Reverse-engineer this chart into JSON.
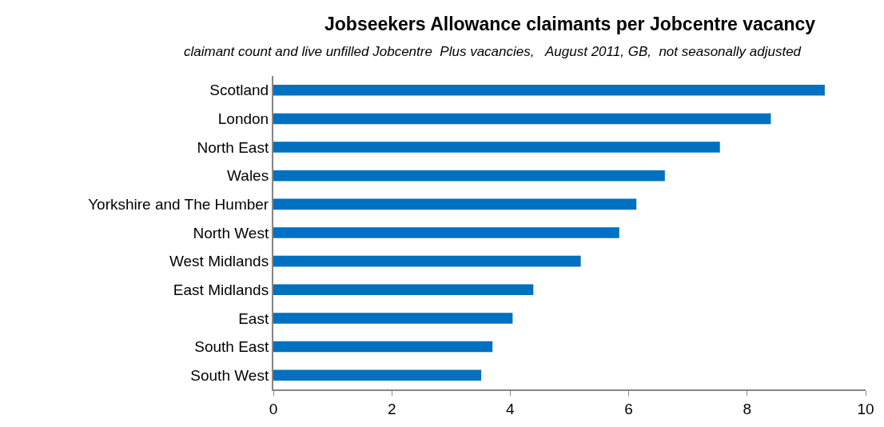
{
  "chart_data": {
    "type": "bar",
    "orientation": "horizontal",
    "title": "Jobseekers Allowance claimants per Jobcentre vacancy",
    "subtitle": "claimant count and live unfilled Jobcentre  Plus vacancies,   August 2011, GB,  not seasonally adjusted",
    "categories": [
      "Scotland",
      "London",
      "North East",
      "Wales",
      "Yorkshire and The Humber",
      "North West",
      "West Midlands",
      "East Midlands",
      "East",
      "South East",
      "South West"
    ],
    "values": [
      9.31,
      8.4,
      7.54,
      6.61,
      6.13,
      5.84,
      5.19,
      4.39,
      4.04,
      3.7,
      3.51
    ],
    "color": "#0070c0",
    "xlim": [
      0,
      10
    ],
    "xticks": [
      0,
      2,
      4,
      6,
      8,
      10
    ]
  }
}
